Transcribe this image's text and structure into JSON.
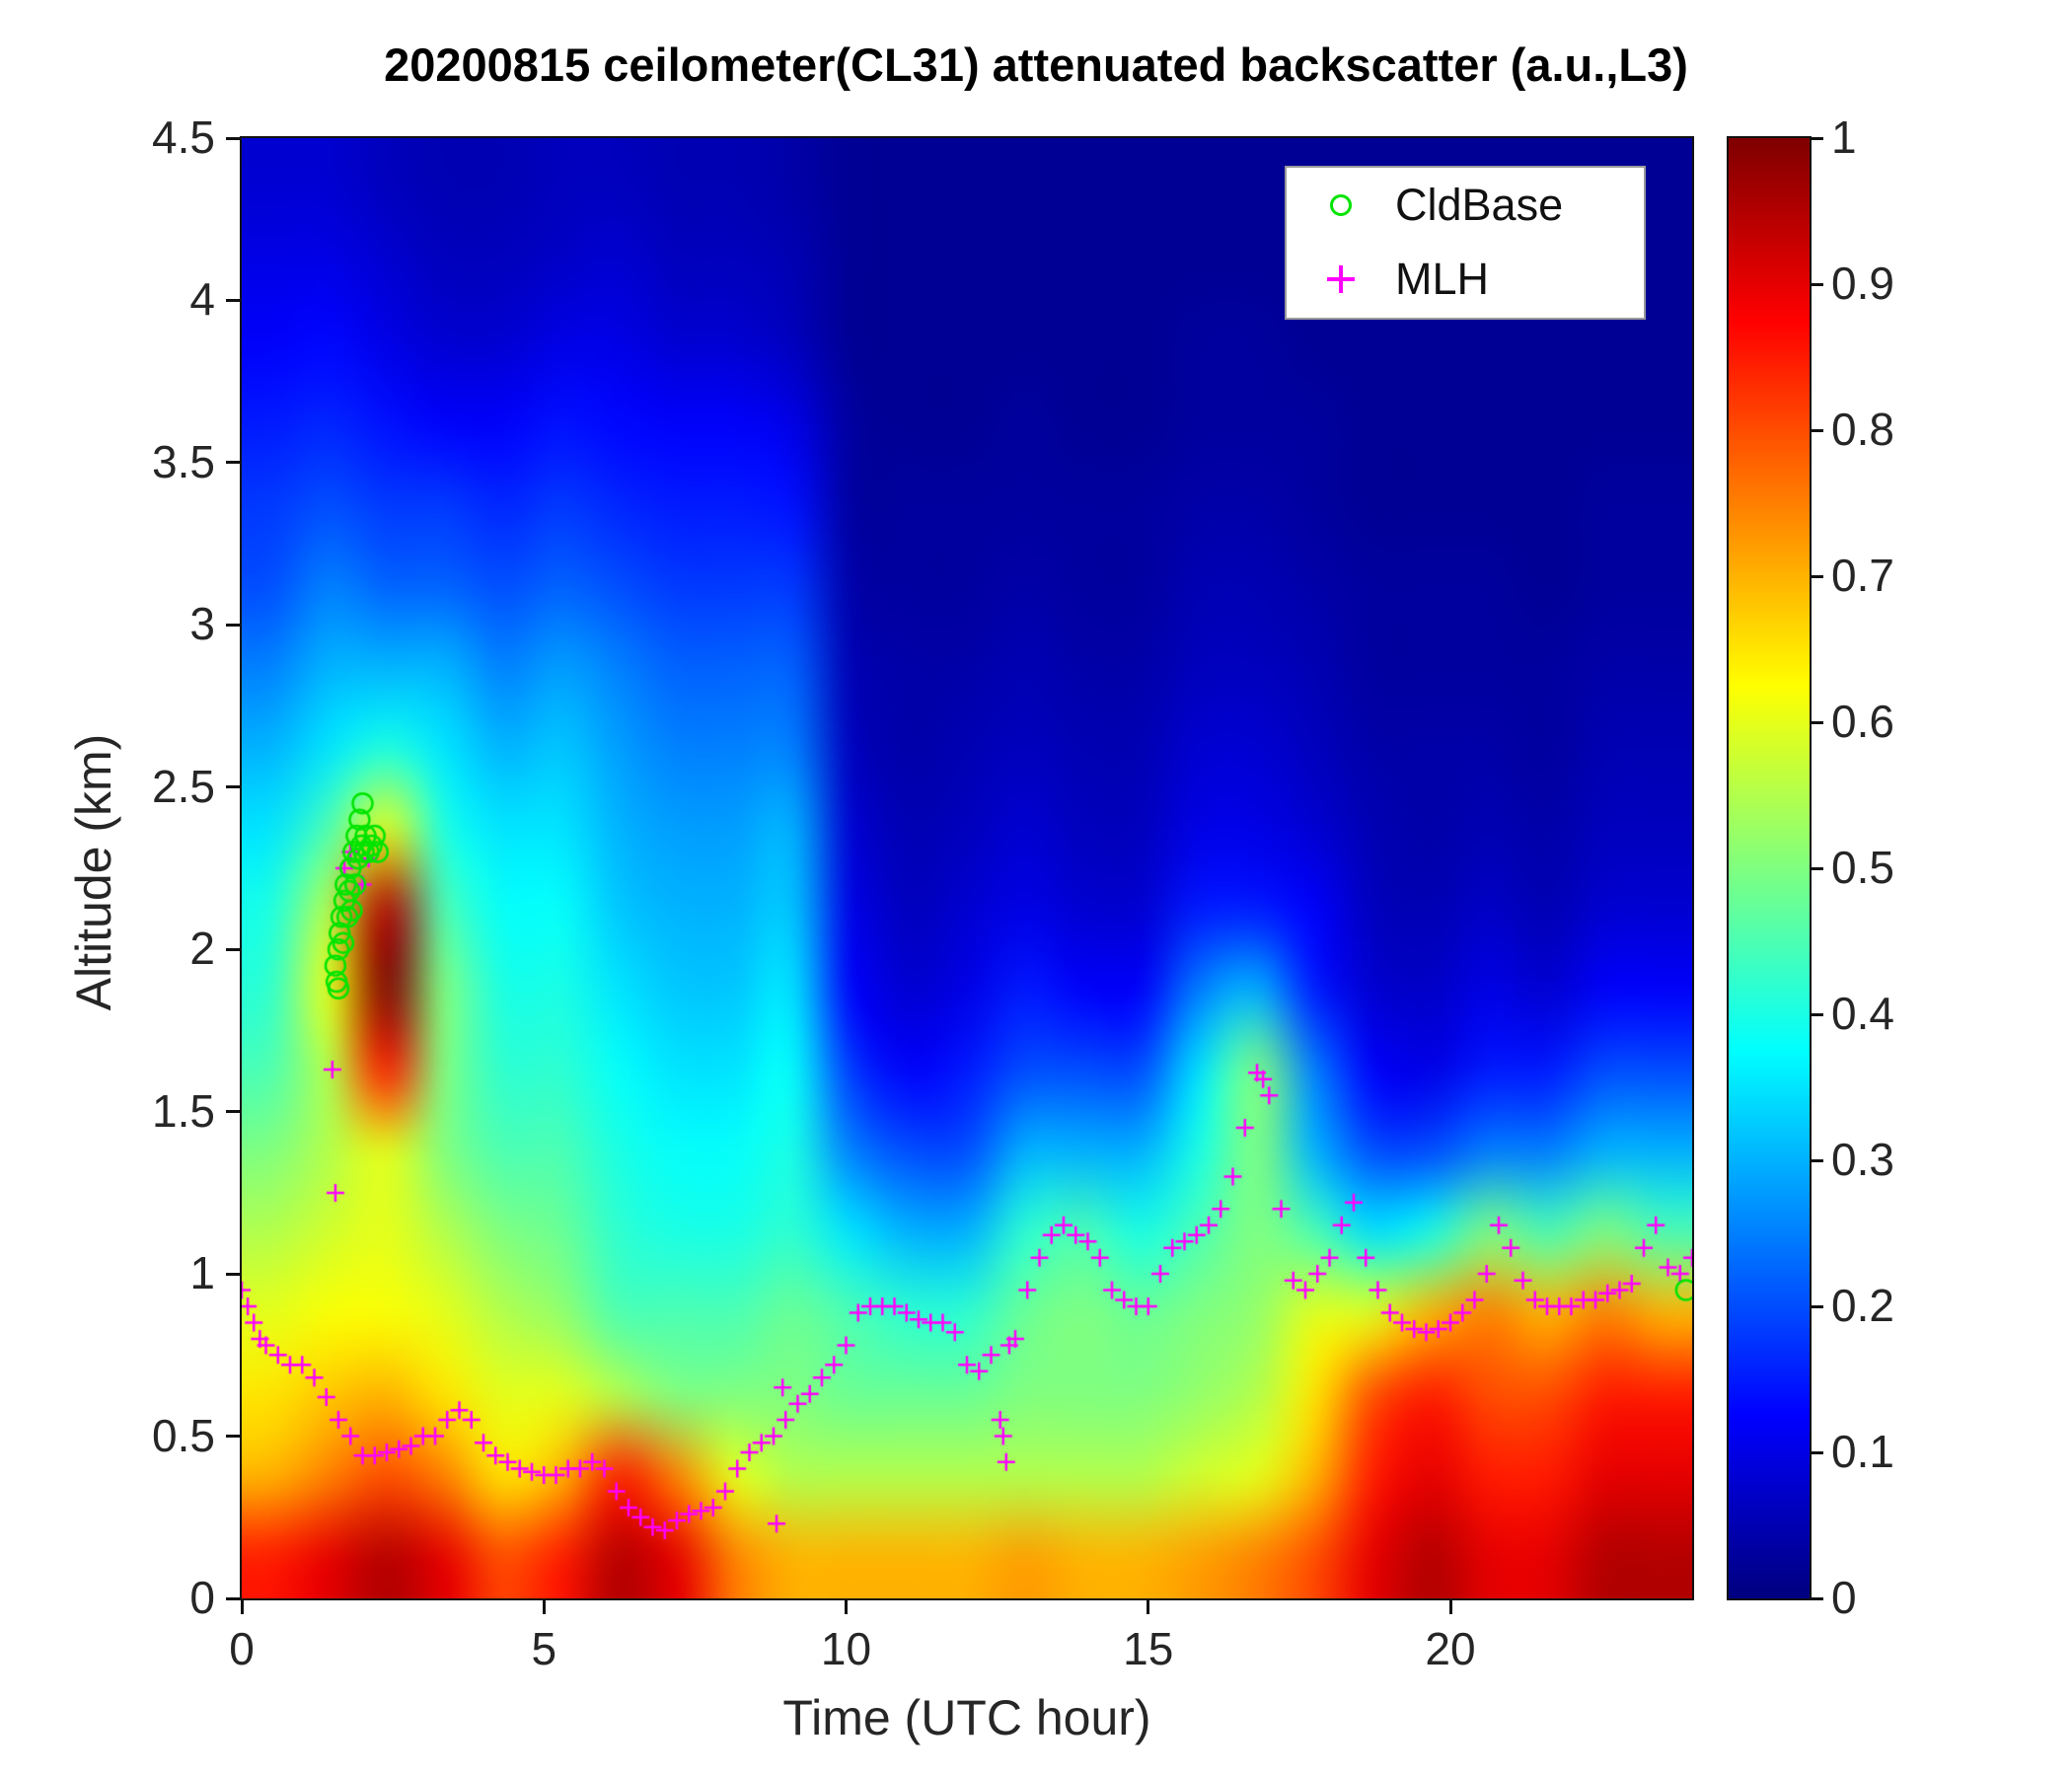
{
  "chart_data": {
    "type": "heatmap",
    "title": "20200815 ceilometer(CL31) attenuated backscatter (a.u.,L3)",
    "xlabel": "Time (UTC hour)",
    "ylabel": "Altitude (km)",
    "x_range": [
      0,
      24
    ],
    "y_range": [
      0,
      4.5
    ],
    "color_range": [
      0,
      1
    ],
    "colormap": "jet",
    "grid": "off",
    "x_ticks": [
      0,
      5,
      10,
      15,
      20
    ],
    "y_ticks": [
      0,
      0.5,
      1,
      1.5,
      2,
      2.5,
      3,
      3.5,
      4,
      4.5
    ],
    "colorbar_ticks": [
      0,
      0.1,
      0.2,
      0.3,
      0.4,
      0.5,
      0.6,
      0.7,
      0.8,
      0.9,
      1
    ],
    "legend": [
      {
        "label": "CldBase",
        "marker": "circle",
        "color": "#00e400"
      },
      {
        "label": "MLH",
        "marker": "plus",
        "color": "#ff00ff"
      }
    ],
    "legend_position": "top-right-inside",
    "backscatter_grid": {
      "t_min": 0,
      "t_max": 24,
      "alt_min": 0,
      "alt_max": 4.5,
      "note": "rows bottom-to-top, 0.25 km bins; columns t=0..24 h, 1 h bins; values are attenuated backscatter (a.u., 0-1)",
      "values": [
        [
          0.85,
          0.9,
          0.95,
          0.9,
          0.8,
          0.85,
          0.95,
          0.9,
          0.75,
          0.7,
          0.7,
          0.7,
          0.7,
          0.72,
          0.7,
          0.7,
          0.72,
          0.75,
          0.8,
          0.9,
          0.95,
          0.9,
          0.9,
          0.95,
          0.95
        ],
        [
          0.7,
          0.75,
          0.8,
          0.75,
          0.65,
          0.7,
          0.85,
          0.75,
          0.6,
          0.55,
          0.55,
          0.55,
          0.55,
          0.55,
          0.55,
          0.55,
          0.58,
          0.6,
          0.7,
          0.85,
          0.9,
          0.85,
          0.85,
          0.9,
          0.9
        ],
        [
          0.65,
          0.68,
          0.7,
          0.65,
          0.6,
          0.6,
          0.55,
          0.5,
          0.5,
          0.5,
          0.48,
          0.48,
          0.48,
          0.5,
          0.5,
          0.5,
          0.52,
          0.55,
          0.65,
          0.8,
          0.85,
          0.8,
          0.8,
          0.85,
          0.85
        ],
        [
          0.6,
          0.62,
          0.62,
          0.6,
          0.55,
          0.52,
          0.45,
          0.45,
          0.45,
          0.48,
          0.45,
          0.42,
          0.42,
          0.48,
          0.5,
          0.48,
          0.5,
          0.52,
          0.6,
          0.6,
          0.7,
          0.75,
          0.7,
          0.75,
          0.7
        ],
        [
          0.55,
          0.58,
          0.6,
          0.55,
          0.5,
          0.48,
          0.42,
          0.4,
          0.4,
          0.42,
          0.35,
          0.3,
          0.3,
          0.42,
          0.45,
          0.4,
          0.45,
          0.5,
          0.45,
          0.35,
          0.4,
          0.5,
          0.45,
          0.5,
          0.45
        ],
        [
          0.5,
          0.55,
          0.6,
          0.5,
          0.45,
          0.45,
          0.4,
          0.38,
          0.38,
          0.4,
          0.25,
          0.2,
          0.2,
          0.3,
          0.3,
          0.3,
          0.4,
          0.5,
          0.3,
          0.2,
          0.2,
          0.25,
          0.25,
          0.3,
          0.3
        ],
        [
          0.45,
          0.55,
          0.85,
          0.5,
          0.42,
          0.42,
          0.38,
          0.35,
          0.35,
          0.38,
          0.18,
          0.12,
          0.15,
          0.2,
          0.2,
          0.2,
          0.35,
          0.5,
          0.25,
          0.12,
          0.1,
          0.15,
          0.15,
          0.2,
          0.2
        ],
        [
          0.42,
          0.6,
          1.0,
          0.5,
          0.4,
          0.4,
          0.35,
          0.32,
          0.32,
          0.35,
          0.12,
          0.08,
          0.1,
          0.15,
          0.12,
          0.12,
          0.25,
          0.3,
          0.15,
          0.08,
          0.07,
          0.1,
          0.08,
          0.12,
          0.12
        ],
        [
          0.4,
          0.55,
          0.95,
          0.45,
          0.38,
          0.38,
          0.32,
          0.3,
          0.3,
          0.32,
          0.1,
          0.06,
          0.08,
          0.1,
          0.08,
          0.08,
          0.15,
          0.15,
          0.12,
          0.06,
          0.05,
          0.07,
          0.05,
          0.08,
          0.08
        ],
        [
          0.35,
          0.45,
          0.6,
          0.4,
          0.35,
          0.35,
          0.3,
          0.28,
          0.28,
          0.3,
          0.08,
          0.05,
          0.06,
          0.08,
          0.06,
          0.06,
          0.1,
          0.1,
          0.08,
          0.05,
          0.04,
          0.05,
          0.04,
          0.06,
          0.06
        ],
        [
          0.3,
          0.35,
          0.4,
          0.35,
          0.3,
          0.32,
          0.28,
          0.25,
          0.25,
          0.25,
          0.06,
          0.04,
          0.05,
          0.06,
          0.05,
          0.05,
          0.08,
          0.08,
          0.06,
          0.04,
          0.04,
          0.04,
          0.03,
          0.05,
          0.05
        ],
        [
          0.25,
          0.3,
          0.3,
          0.3,
          0.25,
          0.28,
          0.25,
          0.22,
          0.22,
          0.22,
          0.05,
          0.04,
          0.04,
          0.05,
          0.04,
          0.04,
          0.06,
          0.06,
          0.05,
          0.03,
          0.03,
          0.03,
          0.03,
          0.04,
          0.04
        ],
        [
          0.2,
          0.25,
          0.22,
          0.22,
          0.2,
          0.22,
          0.2,
          0.18,
          0.18,
          0.18,
          0.04,
          0.03,
          0.03,
          0.04,
          0.03,
          0.03,
          0.05,
          0.05,
          0.04,
          0.03,
          0.03,
          0.03,
          0.02,
          0.03,
          0.03
        ],
        [
          0.18,
          0.2,
          0.18,
          0.18,
          0.16,
          0.18,
          0.16,
          0.15,
          0.15,
          0.14,
          0.03,
          0.03,
          0.03,
          0.03,
          0.03,
          0.03,
          0.04,
          0.04,
          0.03,
          0.02,
          0.02,
          0.02,
          0.02,
          0.03,
          0.03
        ],
        [
          0.15,
          0.16,
          0.14,
          0.12,
          0.12,
          0.14,
          0.13,
          0.12,
          0.12,
          0.1,
          0.03,
          0.02,
          0.02,
          0.03,
          0.02,
          0.02,
          0.03,
          0.03,
          0.03,
          0.02,
          0.02,
          0.02,
          0.02,
          0.02,
          0.02
        ],
        [
          0.12,
          0.13,
          0.1,
          0.08,
          0.08,
          0.1,
          0.1,
          0.08,
          0.08,
          0.06,
          0.02,
          0.02,
          0.02,
          0.02,
          0.02,
          0.02,
          0.03,
          0.03,
          0.02,
          0.02,
          0.02,
          0.02,
          0.02,
          0.02,
          0.02
        ],
        [
          0.1,
          0.1,
          0.08,
          0.06,
          0.06,
          0.07,
          0.08,
          0.06,
          0.06,
          0.05,
          0.02,
          0.02,
          0.02,
          0.02,
          0.02,
          0.02,
          0.02,
          0.02,
          0.02,
          0.02,
          0.02,
          0.02,
          0.02,
          0.02,
          0.02
        ],
        [
          0.08,
          0.08,
          0.06,
          0.05,
          0.05,
          0.06,
          0.06,
          0.05,
          0.05,
          0.04,
          0.02,
          0.02,
          0.02,
          0.02,
          0.02,
          0.02,
          0.02,
          0.02,
          0.02,
          0.02,
          0.02,
          0.02,
          0.02,
          0.02,
          0.02
        ]
      ]
    },
    "series": [
      {
        "name": "MLH",
        "marker": "plus",
        "color": "#ff00ff",
        "points": [
          [
            0,
            0.95
          ],
          [
            0.1,
            0.9
          ],
          [
            0.2,
            0.85
          ],
          [
            0.3,
            0.8
          ],
          [
            0.4,
            0.78
          ],
          [
            0.6,
            0.75
          ],
          [
            0.8,
            0.72
          ],
          [
            1,
            0.72
          ],
          [
            1.2,
            0.68
          ],
          [
            1.4,
            0.62
          ],
          [
            1.5,
            1.63
          ],
          [
            1.55,
            1.25
          ],
          [
            1.6,
            0.55
          ],
          [
            1.7,
            2.25
          ],
          [
            1.8,
            0.5
          ],
          [
            1.8,
            2.3
          ],
          [
            2,
            0.44
          ],
          [
            2,
            2.2
          ],
          [
            2.1,
            2.28
          ],
          [
            2.2,
            0.44
          ],
          [
            2.4,
            0.45
          ],
          [
            2.6,
            0.46
          ],
          [
            2.8,
            0.47
          ],
          [
            3,
            0.5
          ],
          [
            3.2,
            0.5
          ],
          [
            3.4,
            0.55
          ],
          [
            3.6,
            0.58
          ],
          [
            3.8,
            0.55
          ],
          [
            4,
            0.48
          ],
          [
            4.2,
            0.44
          ],
          [
            4.4,
            0.42
          ],
          [
            4.6,
            0.4
          ],
          [
            4.8,
            0.39
          ],
          [
            5,
            0.38
          ],
          [
            5.2,
            0.38
          ],
          [
            5.4,
            0.4
          ],
          [
            5.6,
            0.4
          ],
          [
            5.8,
            0.42
          ],
          [
            6,
            0.4
          ],
          [
            6.2,
            0.33
          ],
          [
            6.4,
            0.28
          ],
          [
            6.6,
            0.25
          ],
          [
            6.8,
            0.22
          ],
          [
            7,
            0.21
          ],
          [
            7.2,
            0.24
          ],
          [
            7.4,
            0.26
          ],
          [
            7.6,
            0.27
          ],
          [
            7.8,
            0.28
          ],
          [
            8,
            0.33
          ],
          [
            8.2,
            0.4
          ],
          [
            8.4,
            0.45
          ],
          [
            8.6,
            0.48
          ],
          [
            8.8,
            0.5
          ],
          [
            8.85,
            0.23
          ],
          [
            8.95,
            0.65
          ],
          [
            9,
            0.55
          ],
          [
            9.2,
            0.6
          ],
          [
            9.4,
            0.63
          ],
          [
            9.6,
            0.68
          ],
          [
            9.8,
            0.72
          ],
          [
            10,
            0.78
          ],
          [
            10.2,
            0.88
          ],
          [
            10.4,
            0.9
          ],
          [
            10.6,
            0.9
          ],
          [
            10.8,
            0.9
          ],
          [
            11,
            0.88
          ],
          [
            11.2,
            0.86
          ],
          [
            11.4,
            0.85
          ],
          [
            11.6,
            0.85
          ],
          [
            11.8,
            0.82
          ],
          [
            12,
            0.72
          ],
          [
            12.2,
            0.7
          ],
          [
            12.4,
            0.75
          ],
          [
            12.55,
            0.55
          ],
          [
            12.6,
            0.5
          ],
          [
            12.65,
            0.42
          ],
          [
            12.7,
            0.78
          ],
          [
            12.8,
            0.8
          ],
          [
            13,
            0.95
          ],
          [
            13.2,
            1.05
          ],
          [
            13.4,
            1.12
          ],
          [
            13.6,
            1.15
          ],
          [
            13.8,
            1.12
          ],
          [
            14,
            1.1
          ],
          [
            14.2,
            1.05
          ],
          [
            14.4,
            0.95
          ],
          [
            14.6,
            0.92
          ],
          [
            14.8,
            0.9
          ],
          [
            15,
            0.9
          ],
          [
            15.2,
            1
          ],
          [
            15.4,
            1.08
          ],
          [
            15.6,
            1.1
          ],
          [
            15.8,
            1.12
          ],
          [
            16,
            1.15
          ],
          [
            16.2,
            1.2
          ],
          [
            16.4,
            1.3
          ],
          [
            16.6,
            1.45
          ],
          [
            16.8,
            1.62
          ],
          [
            16.9,
            1.6
          ],
          [
            17,
            1.55
          ],
          [
            17.2,
            1.2
          ],
          [
            17.4,
            0.98
          ],
          [
            17.6,
            0.95
          ],
          [
            17.8,
            1
          ],
          [
            18,
            1.05
          ],
          [
            18.2,
            1.15
          ],
          [
            18.4,
            1.22
          ],
          [
            18.6,
            1.05
          ],
          [
            18.8,
            0.95
          ],
          [
            19,
            0.88
          ],
          [
            19.2,
            0.85
          ],
          [
            19.4,
            0.83
          ],
          [
            19.6,
            0.82
          ],
          [
            19.8,
            0.83
          ],
          [
            20,
            0.85
          ],
          [
            20.2,
            0.88
          ],
          [
            20.4,
            0.92
          ],
          [
            20.6,
            1
          ],
          [
            20.8,
            1.15
          ],
          [
            21,
            1.08
          ],
          [
            21.2,
            0.98
          ],
          [
            21.4,
            0.92
          ],
          [
            21.6,
            0.9
          ],
          [
            21.8,
            0.9
          ],
          [
            22,
            0.9
          ],
          [
            22.2,
            0.92
          ],
          [
            22.4,
            0.92
          ],
          [
            22.6,
            0.94
          ],
          [
            22.8,
            0.95
          ],
          [
            23,
            0.97
          ],
          [
            23.2,
            1.08
          ],
          [
            23.4,
            1.15
          ],
          [
            23.6,
            1.02
          ],
          [
            23.8,
            1
          ],
          [
            24,
            1.05
          ]
        ]
      },
      {
        "name": "CldBase",
        "marker": "circle",
        "color": "#00e400",
        "points": [
          [
            1.55,
            1.95
          ],
          [
            1.57,
            1.9
          ],
          [
            1.6,
            1.88
          ],
          [
            1.6,
            2.0
          ],
          [
            1.62,
            2.05
          ],
          [
            1.65,
            2.1
          ],
          [
            1.68,
            2.02
          ],
          [
            1.7,
            2.15
          ],
          [
            1.72,
            2.2
          ],
          [
            1.75,
            2.1
          ],
          [
            1.78,
            2.18
          ],
          [
            1.8,
            2.25
          ],
          [
            1.82,
            2.12
          ],
          [
            1.85,
            2.3
          ],
          [
            1.88,
            2.2
          ],
          [
            1.9,
            2.35
          ],
          [
            1.92,
            2.28
          ],
          [
            1.95,
            2.4
          ],
          [
            1.98,
            2.32
          ],
          [
            2.0,
            2.45
          ],
          [
            2.02,
            2.3
          ],
          [
            2.05,
            2.35
          ],
          [
            2.1,
            2.3
          ],
          [
            2.15,
            2.32
          ],
          [
            2.2,
            2.35
          ],
          [
            2.25,
            2.3
          ],
          [
            23.9,
            0.95
          ]
        ]
      }
    ]
  },
  "colors": {
    "axis_text": "#262626",
    "axis_line": "#111111",
    "background": "#ffffff",
    "mlh_marker": "#ff00ff",
    "cldbase_marker": "#00e400"
  }
}
